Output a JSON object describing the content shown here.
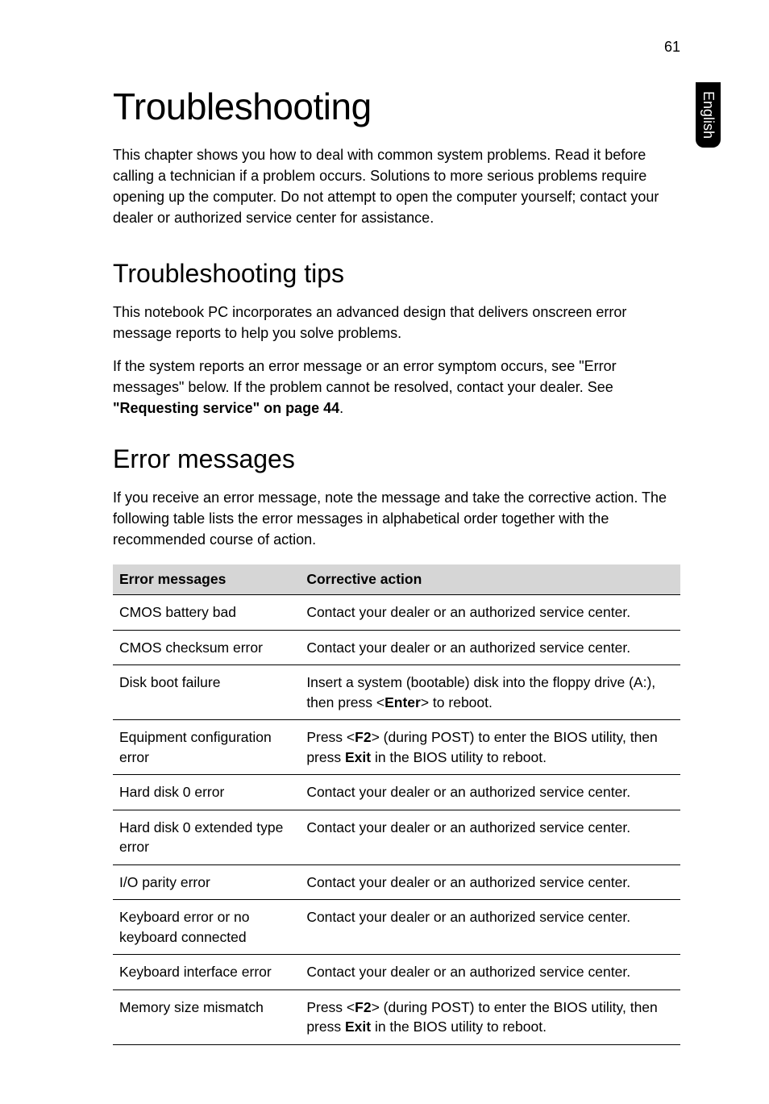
{
  "page_number": "61",
  "side_tab": "English",
  "heading1": "Troubleshooting",
  "intro": "This chapter shows you how to deal with common system problems. Read it before calling a technician if a problem occurs. Solutions to more serious problems require opening up the computer. Do not attempt to open the computer yourself; contact your dealer or authorized service center for assistance.",
  "heading2_tips": "Troubleshooting tips",
  "tips_p1": "This notebook PC incorporates an advanced design that delivers onscreen error message reports to help you solve problems.",
  "tips_p2_part1": "If the system reports an error message or an error symptom occurs, see \"Error messages\" below. If the problem cannot be resolved, contact your dealer. See ",
  "tips_p2_bold": "\"Requesting service\" on page 44",
  "tips_p2_part2": ".",
  "heading2_error": "Error messages",
  "error_intro": "If you receive an error message, note the message and take the corrective action. The following table lists the error messages in alphabetical order together with the recommended course of action.",
  "table_header_col1": "Error messages",
  "table_header_col2": "Corrective action",
  "rows": [
    {
      "msg": "CMOS battery bad",
      "action_plain": "Contact your dealer or an authorized service center."
    },
    {
      "msg": "CMOS checksum error",
      "action_plain": "Contact your dealer or an authorized service center."
    },
    {
      "msg": "Disk boot failure",
      "action_pre": "Insert a system (bootable) disk into the floppy drive (A:), then press <",
      "action_bold1": "Enter",
      "action_post": "> to reboot."
    },
    {
      "msg": "Equipment configuration error",
      "action_pre": "Press <",
      "action_bold1": "F2",
      "action_mid": "> (during POST) to enter the BIOS utility, then press ",
      "action_bold2": "Exit",
      "action_post": " in the BIOS utility to reboot."
    },
    {
      "msg": "Hard disk 0 error",
      "action_plain": "Contact your dealer or an authorized service center."
    },
    {
      "msg": "Hard disk 0 extended type error",
      "action_plain": "Contact your dealer or an authorized service center."
    },
    {
      "msg": "I/O parity error",
      "action_plain": "Contact your dealer or an authorized service center."
    },
    {
      "msg": "Keyboard error or no keyboard connected",
      "action_plain": "Contact your dealer or an authorized service center."
    },
    {
      "msg": "Keyboard interface error",
      "action_plain": "Contact your dealer or an authorized service center."
    },
    {
      "msg": "Memory size mismatch",
      "action_pre": "Press <",
      "action_bold1": "F2",
      "action_mid": "> (during POST) to enter the BIOS utility, then press ",
      "action_bold2": "Exit",
      "action_post": " in the BIOS utility to reboot."
    }
  ]
}
